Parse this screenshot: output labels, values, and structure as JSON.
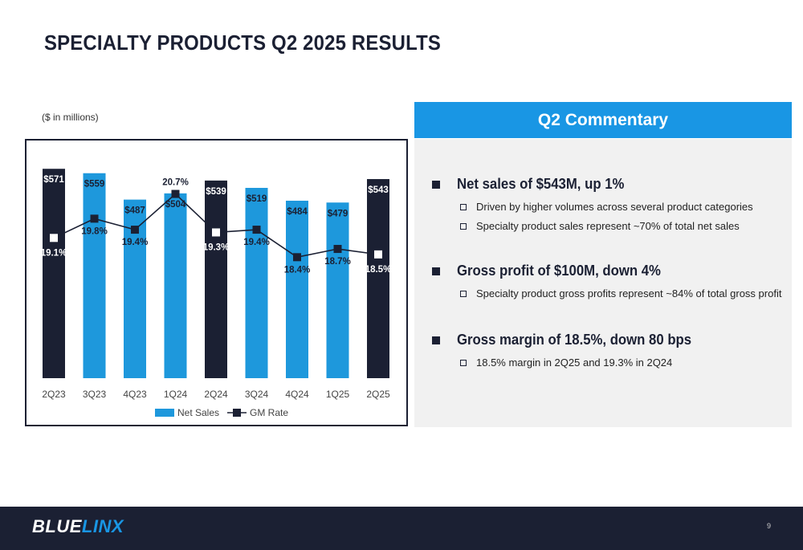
{
  "slide": {
    "title": "SPECIALTY PRODUCTS Q2 2025 RESULTS",
    "units_note": "($ in millions)",
    "page_number": "9"
  },
  "chart_data": {
    "type": "bar",
    "categories": [
      "2Q23",
      "3Q23",
      "4Q23",
      "1Q24",
      "2Q24",
      "3Q24",
      "4Q24",
      "1Q25",
      "2Q25"
    ],
    "series": [
      {
        "name": "Net Sales",
        "values": [
          571,
          559,
          487,
          504,
          539,
          519,
          484,
          479,
          543
        ],
        "labels": [
          "$571",
          "$559",
          "$487",
          "$504",
          "$539",
          "$519",
          "$484",
          "$479",
          "$543"
        ],
        "highlight": [
          true,
          false,
          false,
          false,
          true,
          false,
          false,
          false,
          true
        ]
      },
      {
        "name": "GM Rate",
        "type": "line",
        "values": [
          19.1,
          19.8,
          19.4,
          20.7,
          19.3,
          19.4,
          18.4,
          18.7,
          18.5
        ],
        "labels": [
          "19.1%",
          "19.8%",
          "19.4%",
          "20.7%",
          "19.3%",
          "19.4%",
          "18.4%",
          "18.7%",
          "18.5%"
        ]
      }
    ],
    "bar_ylim": [
      0,
      600
    ],
    "line_ylim": [
      14,
      22
    ],
    "legend": "bottom-center",
    "colors": {
      "bar": "#1e98dc",
      "highlight": "#1b2033",
      "line": "#1b2033",
      "line_marker_on_highlight": "#ffffff"
    }
  },
  "commentary": {
    "header": "Q2 Commentary",
    "sections": [
      {
        "heading": "Net sales of $543M, up 1%",
        "points": [
          "Driven by higher volumes across several product categories",
          "Specialty product sales represent ~70% of total net sales"
        ]
      },
      {
        "heading": "Gross profit of $100M, down 4%",
        "points": [
          "Specialty product gross profits represent ~84% of total gross profit"
        ]
      },
      {
        "heading": "Gross margin of 18.5%, down 80 bps",
        "points": [
          "18.5% margin in 2Q25 and 19.3% in 2Q24"
        ]
      }
    ]
  },
  "footer": {
    "logo_main": "BLUE",
    "logo_accent": "LINX"
  }
}
